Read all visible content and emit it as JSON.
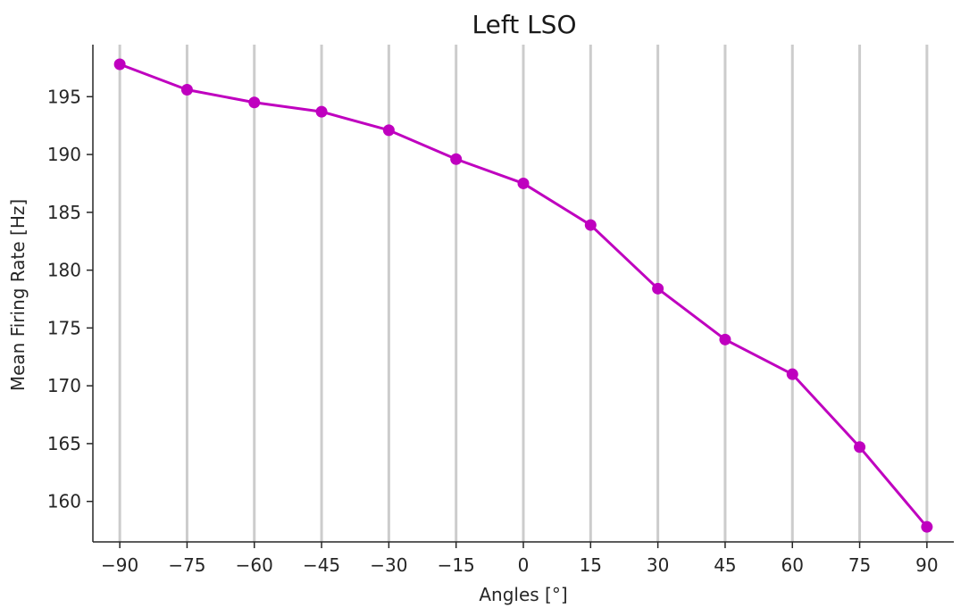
{
  "chart_data": {
    "type": "line",
    "title": "Left LSO",
    "xlabel": "Angles [°]",
    "ylabel": "Mean Firing Rate [Hz]",
    "x": [
      -90,
      -75,
      -60,
      -45,
      -30,
      -15,
      0,
      15,
      30,
      45,
      60,
      75,
      90
    ],
    "x_tick_labels": [
      "−90",
      "−75",
      "−60",
      "−45",
      "−30",
      "−15",
      "0",
      "15",
      "30",
      "45",
      "60",
      "75",
      "90"
    ],
    "series": [
      {
        "values": [
          197.8,
          195.6,
          194.5,
          193.7,
          192.1,
          189.6,
          187.5,
          183.9,
          178.4,
          174.0,
          171.0,
          164.7,
          157.8
        ]
      }
    ],
    "y_ticks": [
      160,
      165,
      170,
      175,
      180,
      185,
      190,
      195
    ],
    "xlim": [
      -96,
      96
    ],
    "ylim": [
      156.5,
      199.5
    ],
    "grid": "vertical",
    "line_color": "#bf00bf",
    "grid_color": "#cccccc",
    "axis_color": "#262626"
  }
}
